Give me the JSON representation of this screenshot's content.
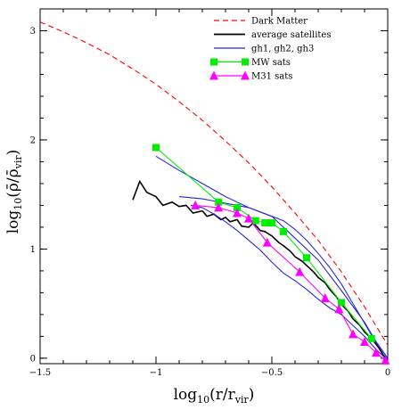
{
  "chart_data": {
    "type": "line",
    "title": "",
    "xlabel": {
      "prefix": "log",
      "base": "10",
      "open": "(r/r",
      "sub": "vir",
      "close": ")"
    },
    "ylabel": {
      "prefix": "log",
      "base": "10",
      "open": "(ρ̄/ρ̄",
      "sub": "vir",
      "close": ")"
    },
    "xlim": [
      -1.5,
      0
    ],
    "ylim": [
      -0.05,
      3.2
    ],
    "x_ticks": [
      -1.5,
      -1,
      -0.5,
      0
    ],
    "x_tick_labels": [
      "−1.5",
      "−1",
      "−0.5",
      "0"
    ],
    "y_ticks": [
      0,
      1,
      2,
      3
    ],
    "y_tick_labels": [
      "0",
      "1",
      "2",
      "3"
    ],
    "grid": false,
    "legend_position": "top-right",
    "series": [
      {
        "name": "Dark Matter",
        "color": "#ff0000",
        "style": "dashed",
        "x": [
          -1.5,
          -1.4,
          -1.3,
          -1.2,
          -1.1,
          -1.0,
          -0.9,
          -0.8,
          -0.7,
          -0.6,
          -0.5,
          -0.4,
          -0.3,
          -0.2,
          -0.1,
          0.0
        ],
        "y": [
          3.08,
          2.99,
          2.89,
          2.78,
          2.65,
          2.51,
          2.35,
          2.18,
          1.99,
          1.79,
          1.57,
          1.33,
          1.08,
          0.79,
          0.47,
          0.12
        ]
      },
      {
        "name": "average satellites",
        "color": "#000000",
        "style": "solid",
        "x": [
          -1.1,
          -1.07,
          -1.04,
          -1.0,
          -0.97,
          -0.93,
          -0.9,
          -0.87,
          -0.84,
          -0.8,
          -0.78,
          -0.75,
          -0.72,
          -0.7,
          -0.68,
          -0.65,
          -0.63,
          -0.6,
          -0.58,
          -0.55,
          -0.53,
          -0.5,
          -0.47,
          -0.45,
          -0.42,
          -0.4,
          -0.37,
          -0.35,
          -0.32,
          -0.3,
          -0.27,
          -0.25,
          -0.22,
          -0.2,
          -0.17,
          -0.15,
          -0.12,
          -0.1,
          -0.07,
          -0.04,
          -0.02,
          0.0
        ],
        "y": [
          1.45,
          1.62,
          1.52,
          1.48,
          1.4,
          1.43,
          1.39,
          1.4,
          1.33,
          1.35,
          1.3,
          1.32,
          1.27,
          1.29,
          1.25,
          1.27,
          1.21,
          1.2,
          1.24,
          1.17,
          1.16,
          1.12,
          1.06,
          1.03,
          0.98,
          0.93,
          0.89,
          0.85,
          0.79,
          0.74,
          0.69,
          0.63,
          0.56,
          0.49,
          0.43,
          0.36,
          0.3,
          0.24,
          0.18,
          0.1,
          0.03,
          -0.02
        ]
      },
      {
        "name": "gh1, gh2, gh3",
        "color": "#2626d9",
        "style": "solid",
        "lines": [
          {
            "x": [
              -1.0,
              -0.9,
              -0.8,
              -0.7,
              -0.6,
              -0.5,
              -0.4,
              -0.3,
              -0.2,
              -0.1,
              -0.05,
              0.0
            ],
            "y": [
              1.85,
              1.72,
              1.6,
              1.48,
              1.38,
              1.3,
              1.1,
              0.9,
              0.62,
              0.33,
              0.15,
              0.0
            ]
          },
          {
            "x": [
              -0.9,
              -0.8,
              -0.7,
              -0.65,
              -0.6,
              -0.55,
              -0.5,
              -0.45,
              -0.4,
              -0.35,
              -0.3,
              -0.25,
              -0.2,
              -0.15,
              -0.1,
              -0.05,
              0.0
            ],
            "y": [
              1.48,
              1.46,
              1.42,
              1.4,
              1.38,
              1.34,
              1.3,
              1.26,
              1.18,
              1.08,
              0.96,
              0.83,
              0.68,
              0.5,
              0.32,
              0.14,
              0.0
            ]
          },
          {
            "x": [
              -0.85,
              -0.8,
              -0.75,
              -0.7,
              -0.65,
              -0.6,
              -0.55,
              -0.5,
              -0.45,
              -0.4,
              -0.35,
              -0.3,
              -0.25,
              -0.2,
              -0.15,
              -0.1,
              -0.05,
              0.0
            ],
            "y": [
              1.4,
              1.38,
              1.32,
              1.25,
              1.17,
              1.08,
              0.99,
              0.88,
              0.78,
              0.71,
              0.63,
              0.54,
              0.46,
              0.4,
              0.3,
              0.2,
              0.08,
              -0.02
            ]
          }
        ]
      },
      {
        "name": "MW sats",
        "color": "#00ee00",
        "style": "solid",
        "marker": "square",
        "x": [
          -1.0,
          -0.73,
          -0.65,
          -0.57,
          -0.53,
          -0.5,
          -0.45,
          -0.35,
          -0.2,
          -0.07
        ],
        "y": [
          1.93,
          1.43,
          1.38,
          1.26,
          1.24,
          1.24,
          1.16,
          0.92,
          0.51,
          0.18
        ]
      },
      {
        "name": "M31 sats",
        "color": "#ff00ff",
        "style": "solid",
        "marker": "triangle",
        "x": [
          -0.83,
          -0.73,
          -0.65,
          -0.6,
          -0.52,
          -0.38,
          -0.27,
          -0.21,
          -0.15,
          -0.1,
          -0.05,
          -0.01
        ],
        "y": [
          1.4,
          1.38,
          1.33,
          1.28,
          1.06,
          0.79,
          0.55,
          0.45,
          0.22,
          0.15,
          0.05,
          -0.02
        ]
      }
    ]
  }
}
